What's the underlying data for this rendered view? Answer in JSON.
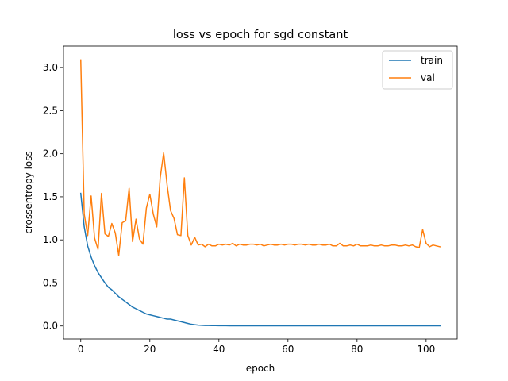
{
  "chart_data": {
    "type": "line",
    "title": "loss vs epoch for sgd constant",
    "xlabel": "epoch",
    "ylabel": "crossentropy loss",
    "xlim": [
      -5,
      109
    ],
    "ylim": [
      -0.15,
      3.25
    ],
    "xticks": [
      0,
      20,
      40,
      60,
      80,
      100
    ],
    "yticks": [
      0.0,
      0.5,
      1.0,
      1.5,
      2.0,
      2.5,
      3.0
    ],
    "xtick_labels": [
      "0",
      "20",
      "40",
      "60",
      "80",
      "100"
    ],
    "ytick_labels": [
      "0.0",
      "0.5",
      "1.0",
      "1.5",
      "2.0",
      "2.5",
      "3.0"
    ],
    "grid": false,
    "legend_position": "top-right",
    "series": [
      {
        "name": "train",
        "color": "#1f77b4",
        "x": [
          0,
          1,
          2,
          3,
          4,
          5,
          6,
          7,
          8,
          9,
          10,
          11,
          12,
          13,
          14,
          15,
          16,
          17,
          18,
          19,
          20,
          21,
          22,
          23,
          24,
          25,
          26,
          27,
          28,
          29,
          30,
          31,
          32,
          33,
          34,
          35,
          36,
          37,
          38,
          39,
          40,
          41,
          42,
          43,
          44,
          45,
          46,
          47,
          48,
          49,
          50,
          51,
          52,
          53,
          54,
          55,
          56,
          57,
          58,
          59,
          60,
          61,
          62,
          63,
          64,
          65,
          66,
          67,
          68,
          69,
          70,
          71,
          72,
          73,
          74,
          75,
          76,
          77,
          78,
          79,
          80,
          81,
          82,
          83,
          84,
          85,
          86,
          87,
          88,
          89,
          90,
          91,
          92,
          93,
          94,
          95,
          96,
          97,
          98,
          99,
          100,
          101,
          102,
          103,
          104
        ],
        "values": [
          1.54,
          1.15,
          0.93,
          0.8,
          0.7,
          0.62,
          0.56,
          0.5,
          0.45,
          0.42,
          0.38,
          0.34,
          0.31,
          0.28,
          0.25,
          0.22,
          0.2,
          0.18,
          0.16,
          0.14,
          0.13,
          0.12,
          0.11,
          0.1,
          0.09,
          0.08,
          0.08,
          0.07,
          0.06,
          0.05,
          0.04,
          0.03,
          0.02,
          0.015,
          0.01,
          0.008,
          0.006,
          0.005,
          0.004,
          0.004,
          0.003,
          0.003,
          0.003,
          0.002,
          0.002,
          0.002,
          0.002,
          0.002,
          0.002,
          0.002,
          0.002,
          0.002,
          0.002,
          0.002,
          0.002,
          0.002,
          0.002,
          0.002,
          0.002,
          0.002,
          0.002,
          0.002,
          0.002,
          0.002,
          0.002,
          0.002,
          0.002,
          0.002,
          0.002,
          0.002,
          0.002,
          0.002,
          0.002,
          0.002,
          0.002,
          0.002,
          0.002,
          0.002,
          0.002,
          0.002,
          0.002,
          0.002,
          0.002,
          0.002,
          0.002,
          0.002,
          0.002,
          0.002,
          0.002,
          0.002,
          0.002,
          0.002,
          0.002,
          0.002,
          0.002,
          0.002,
          0.002,
          0.002,
          0.002,
          0.002,
          0.002,
          0.002,
          0.002,
          0.002,
          0.002
        ]
      },
      {
        "name": "val",
        "color": "#ff7f0e",
        "x": [
          0,
          1,
          2,
          3,
          4,
          5,
          6,
          7,
          8,
          9,
          10,
          11,
          12,
          13,
          14,
          15,
          16,
          17,
          18,
          19,
          20,
          21,
          22,
          23,
          24,
          25,
          26,
          27,
          28,
          29,
          30,
          31,
          32,
          33,
          34,
          35,
          36,
          37,
          38,
          39,
          40,
          41,
          42,
          43,
          44,
          45,
          46,
          47,
          48,
          49,
          50,
          51,
          52,
          53,
          54,
          55,
          56,
          57,
          58,
          59,
          60,
          61,
          62,
          63,
          64,
          65,
          66,
          67,
          68,
          69,
          70,
          71,
          72,
          73,
          74,
          75,
          76,
          77,
          78,
          79,
          80,
          81,
          82,
          83,
          84,
          85,
          86,
          87,
          88,
          89,
          90,
          91,
          92,
          93,
          94,
          95,
          96,
          97,
          98,
          99,
          100,
          101,
          102,
          103,
          104
        ],
        "values": [
          3.09,
          1.3,
          1.05,
          1.51,
          1.02,
          0.89,
          1.54,
          1.07,
          1.04,
          1.19,
          1.08,
          0.82,
          1.2,
          1.22,
          1.6,
          0.98,
          1.24,
          1.01,
          0.95,
          1.37,
          1.53,
          1.3,
          1.15,
          1.72,
          2.01,
          1.64,
          1.34,
          1.25,
          1.06,
          1.05,
          1.72,
          1.05,
          0.94,
          1.03,
          0.94,
          0.95,
          0.92,
          0.95,
          0.93,
          0.93,
          0.95,
          0.94,
          0.95,
          0.94,
          0.96,
          0.93,
          0.95,
          0.94,
          0.94,
          0.95,
          0.95,
          0.94,
          0.95,
          0.93,
          0.94,
          0.95,
          0.94,
          0.94,
          0.95,
          0.94,
          0.95,
          0.95,
          0.94,
          0.95,
          0.95,
          0.94,
          0.95,
          0.94,
          0.94,
          0.95,
          0.94,
          0.94,
          0.95,
          0.93,
          0.93,
          0.96,
          0.93,
          0.93,
          0.94,
          0.93,
          0.95,
          0.93,
          0.93,
          0.93,
          0.94,
          0.93,
          0.93,
          0.94,
          0.93,
          0.93,
          0.94,
          0.94,
          0.93,
          0.93,
          0.94,
          0.93,
          0.94,
          0.92,
          0.91,
          1.12,
          0.96,
          0.92,
          0.94,
          0.93,
          0.92
        ]
      }
    ]
  }
}
